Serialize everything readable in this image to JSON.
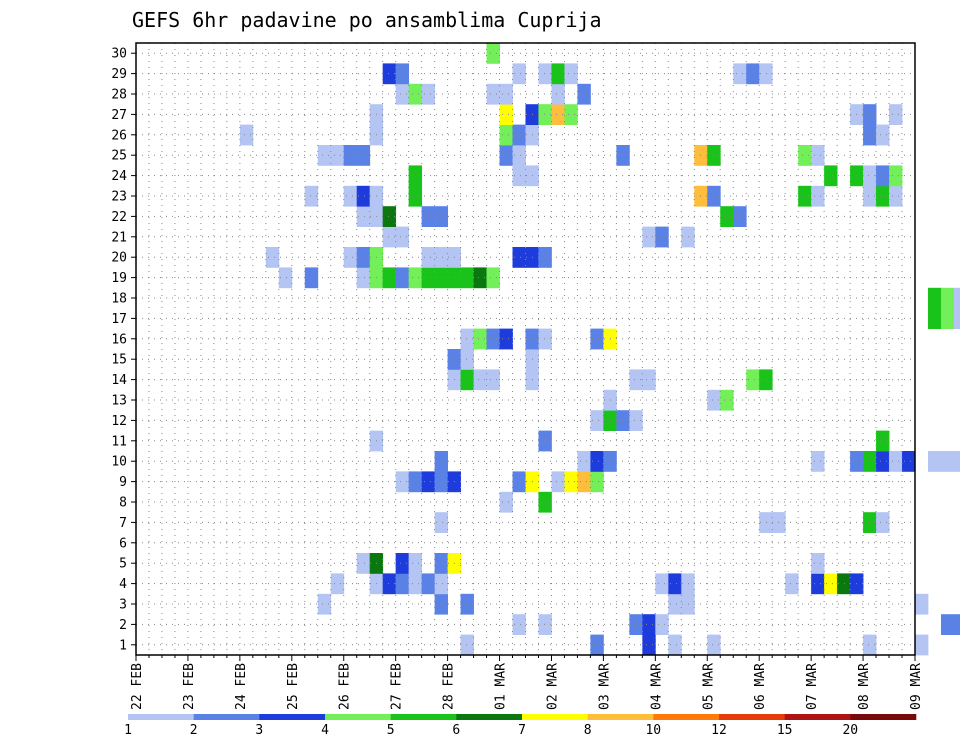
{
  "chart_data": {
    "type": "heatmap",
    "title": "GEFS 6hr padavine po ansamblima Cuprija",
    "xlabel": "",
    "ylabel": "",
    "x_tick_labels": [
      "22 FEB",
      "23 FEB",
      "24 FEB",
      "25 FEB",
      "26 FEB",
      "27 FEB",
      "28 FEB",
      "01 MAR",
      "02 MAR",
      "03 MAR",
      "04 MAR",
      "05 MAR",
      "06 MAR",
      "07 MAR",
      "08 MAR",
      "09 MAR"
    ],
    "y_tick_labels": [
      "1",
      "2",
      "3",
      "4",
      "5",
      "6",
      "7",
      "8",
      "9",
      "10",
      "11",
      "12",
      "13",
      "14",
      "15",
      "16",
      "17",
      "18",
      "19",
      "20",
      "21",
      "22",
      "23",
      "24",
      "25",
      "26",
      "27",
      "28",
      "29",
      "30"
    ],
    "ylim": [
      0.5,
      30.5
    ],
    "time_step": "6hr",
    "columns_per_day": 4,
    "grid": true,
    "legend_position": "bottom",
    "color_scale": {
      "labels": [
        "1",
        "2",
        "3",
        "4",
        "5",
        "6",
        "7",
        "8",
        "10",
        "12",
        "15",
        "20"
      ],
      "colors": [
        "#b4c5f4",
        "#5a82e6",
        "#1e3cdc",
        "#73ef5a",
        "#19c319",
        "#0a780f",
        "#ffff00",
        "#ffbd3c",
        "#ff7a0a",
        "#e63c0a",
        "#af1414",
        "#780a0a"
      ]
    },
    "series": [
      {
        "member": 1,
        "cells": [
          [
            25,
            1
          ],
          [
            35,
            2
          ],
          [
            39,
            3
          ],
          [
            41,
            1
          ],
          [
            44,
            1
          ],
          [
            56,
            1
          ],
          [
            60,
            1
          ],
          [
            68,
            1
          ],
          [
            72,
            1
          ]
        ]
      },
      {
        "member": 2,
        "cells": [
          [
            29,
            1
          ],
          [
            31,
            1
          ],
          [
            38,
            2
          ],
          [
            39,
            3
          ],
          [
            40,
            1
          ],
          [
            62,
            2
          ],
          [
            63,
            2
          ],
          [
            64,
            6
          ],
          [
            65,
            1
          ]
        ]
      },
      {
        "member": 3,
        "cells": [
          [
            14,
            1
          ],
          [
            23,
            2
          ],
          [
            25,
            2
          ],
          [
            41,
            1
          ],
          [
            42,
            1
          ],
          [
            60,
            1
          ],
          [
            74,
            1
          ]
        ]
      },
      {
        "member": 4,
        "cells": [
          [
            15,
            1
          ],
          [
            18,
            1
          ],
          [
            19,
            3
          ],
          [
            20,
            2
          ],
          [
            21,
            1
          ],
          [
            22,
            2
          ],
          [
            23,
            1
          ],
          [
            40,
            1
          ],
          [
            41,
            3
          ],
          [
            42,
            1
          ],
          [
            50,
            1
          ],
          [
            52,
            3
          ],
          [
            53,
            7
          ],
          [
            54,
            6
          ],
          [
            55,
            3
          ]
        ]
      },
      {
        "member": 5,
        "cells": [
          [
            17,
            1
          ],
          [
            18,
            6
          ],
          [
            20,
            3
          ],
          [
            21,
            1
          ],
          [
            23,
            2
          ],
          [
            24,
            7
          ],
          [
            52,
            1
          ]
        ]
      },
      {
        "member": 7,
        "cells": [
          [
            23,
            1
          ],
          [
            48,
            1
          ],
          [
            49,
            1
          ],
          [
            49,
            1
          ],
          [
            56,
            5
          ],
          [
            57,
            1
          ]
        ]
      },
      {
        "member": 8,
        "cells": [
          [
            28,
            1
          ],
          [
            31,
            5
          ],
          [
            72,
            1
          ]
        ]
      },
      {
        "member": 9,
        "cells": [
          [
            20,
            1
          ],
          [
            21,
            2
          ],
          [
            22,
            3
          ],
          [
            23,
            2
          ],
          [
            24,
            3
          ],
          [
            29,
            2
          ],
          [
            30,
            7
          ],
          [
            32,
            1
          ],
          [
            33,
            7
          ],
          [
            34,
            8
          ],
          [
            35,
            4
          ]
        ]
      },
      {
        "member": 10,
        "cells": [
          [
            23,
            2
          ],
          [
            34,
            1
          ],
          [
            35,
            3
          ],
          [
            36,
            2
          ],
          [
            52,
            1
          ],
          [
            55,
            2
          ],
          [
            56,
            5
          ],
          [
            57,
            3
          ],
          [
            58,
            1
          ],
          [
            59,
            3
          ],
          [
            61,
            1
          ],
          [
            62,
            1
          ],
          [
            63,
            1
          ]
        ]
      },
      {
        "member": 11,
        "cells": [
          [
            18,
            1
          ],
          [
            31,
            2
          ],
          [
            57,
            5
          ],
          [
            64,
            1
          ],
          [
            71,
            1
          ],
          [
            72,
            8
          ]
        ]
      },
      {
        "member": 12,
        "cells": [
          [
            35,
            1
          ],
          [
            36,
            5
          ],
          [
            37,
            2
          ],
          [
            38,
            1
          ]
        ]
      },
      {
        "member": 13,
        "cells": [
          [
            36,
            1
          ],
          [
            44,
            1
          ],
          [
            45,
            4
          ]
        ]
      },
      {
        "member": 14,
        "cells": [
          [
            24,
            1
          ],
          [
            25,
            5
          ],
          [
            26,
            1
          ],
          [
            27,
            1
          ],
          [
            30,
            1
          ],
          [
            38,
            1
          ],
          [
            39,
            1
          ],
          [
            47,
            4
          ],
          [
            48,
            5
          ],
          [
            68,
            3
          ],
          [
            71,
            5
          ],
          [
            72,
            1
          ]
        ]
      },
      {
        "member": 15,
        "cells": [
          [
            24,
            2
          ],
          [
            25,
            1
          ],
          [
            30,
            1
          ]
        ]
      },
      {
        "member": 16,
        "cells": [
          [
            25,
            1
          ],
          [
            26,
            4
          ],
          [
            27,
            2
          ],
          [
            28,
            3
          ],
          [
            30,
            2
          ],
          [
            31,
            1
          ],
          [
            35,
            2
          ],
          [
            36,
            7
          ],
          [
            68,
            6
          ],
          [
            69,
            11
          ],
          [
            70,
            9
          ],
          [
            71,
            4
          ]
        ]
      },
      {
        "member": 17,
        "cells": [
          [
            61,
            5
          ],
          [
            62,
            4
          ],
          [
            63,
            1
          ]
        ]
      },
      {
        "member": 18,
        "cells": [
          [
            61,
            5
          ],
          [
            62,
            4
          ],
          [
            63,
            1
          ]
        ]
      },
      {
        "member": 19,
        "cells": [
          [
            11,
            1
          ],
          [
            13,
            2
          ],
          [
            17,
            1
          ],
          [
            18,
            4
          ],
          [
            19,
            5
          ],
          [
            20,
            2
          ],
          [
            21,
            4
          ],
          [
            22,
            5
          ],
          [
            23,
            5
          ],
          [
            24,
            5
          ],
          [
            25,
            5
          ],
          [
            26,
            6
          ],
          [
            27,
            4
          ]
        ]
      },
      {
        "member": 20,
        "cells": [
          [
            10,
            1
          ],
          [
            16,
            1
          ],
          [
            17,
            2
          ],
          [
            18,
            4
          ],
          [
            22,
            1
          ],
          [
            23,
            1
          ],
          [
            24,
            1
          ],
          [
            29,
            3
          ],
          [
            30,
            3
          ],
          [
            31,
            2
          ]
        ]
      },
      {
        "member": 21,
        "cells": [
          [
            19,
            1
          ],
          [
            20,
            1
          ],
          [
            39,
            1
          ],
          [
            40,
            2
          ],
          [
            42,
            1
          ],
          [
            72,
            1
          ]
        ]
      },
      {
        "member": 22,
        "cells": [
          [
            17,
            1
          ],
          [
            18,
            1
          ],
          [
            19,
            6
          ],
          [
            22,
            2
          ],
          [
            23,
            2
          ],
          [
            45,
            5
          ],
          [
            46,
            2
          ],
          [
            72,
            1
          ]
        ]
      },
      {
        "member": 23,
        "cells": [
          [
            13,
            1
          ],
          [
            16,
            1
          ],
          [
            17,
            3
          ],
          [
            18,
            1
          ],
          [
            21,
            5
          ],
          [
            43,
            8
          ],
          [
            44,
            2
          ],
          [
            51,
            5
          ],
          [
            52,
            1
          ],
          [
            56,
            1
          ],
          [
            57,
            5
          ],
          [
            58,
            1
          ]
        ]
      },
      {
        "member": 24,
        "cells": [
          [
            21,
            5
          ],
          [
            29,
            1
          ],
          [
            30,
            1
          ],
          [
            53,
            5
          ],
          [
            55,
            5
          ],
          [
            56,
            1
          ],
          [
            57,
            2
          ],
          [
            58,
            4
          ]
        ]
      },
      {
        "member": 25,
        "cells": [
          [
            14,
            1
          ],
          [
            15,
            1
          ],
          [
            16,
            2
          ],
          [
            17,
            2
          ],
          [
            28,
            2
          ],
          [
            29,
            1
          ],
          [
            37,
            2
          ],
          [
            43,
            8
          ],
          [
            44,
            5
          ],
          [
            51,
            4
          ],
          [
            52,
            1
          ],
          [
            72,
            2
          ]
        ]
      },
      {
        "member": 26,
        "cells": [
          [
            8,
            1
          ],
          [
            18,
            1
          ],
          [
            28,
            4
          ],
          [
            29,
            2
          ],
          [
            30,
            1
          ],
          [
            56,
            2
          ],
          [
            57,
            1
          ]
        ]
      },
      {
        "member": 27,
        "cells": [
          [
            18,
            1
          ],
          [
            28,
            7
          ],
          [
            30,
            3
          ],
          [
            31,
            4
          ],
          [
            32,
            8
          ],
          [
            33,
            4
          ],
          [
            55,
            1
          ],
          [
            56,
            2
          ],
          [
            58,
            1
          ]
        ]
      },
      {
        "member": 28,
        "cells": [
          [
            20,
            1
          ],
          [
            21,
            4
          ],
          [
            22,
            1
          ],
          [
            27,
            1
          ],
          [
            28,
            1
          ],
          [
            32,
            1
          ],
          [
            34,
            2
          ]
        ]
      },
      {
        "member": 29,
        "cells": [
          [
            19,
            3
          ],
          [
            20,
            2
          ],
          [
            29,
            1
          ],
          [
            31,
            1
          ],
          [
            32,
            5
          ],
          [
            33,
            1
          ],
          [
            46,
            1
          ],
          [
            47,
            2
          ],
          [
            48,
            1
          ]
        ]
      },
      {
        "member": 30,
        "cells": [
          [
            27,
            4
          ]
        ]
      }
    ]
  }
}
